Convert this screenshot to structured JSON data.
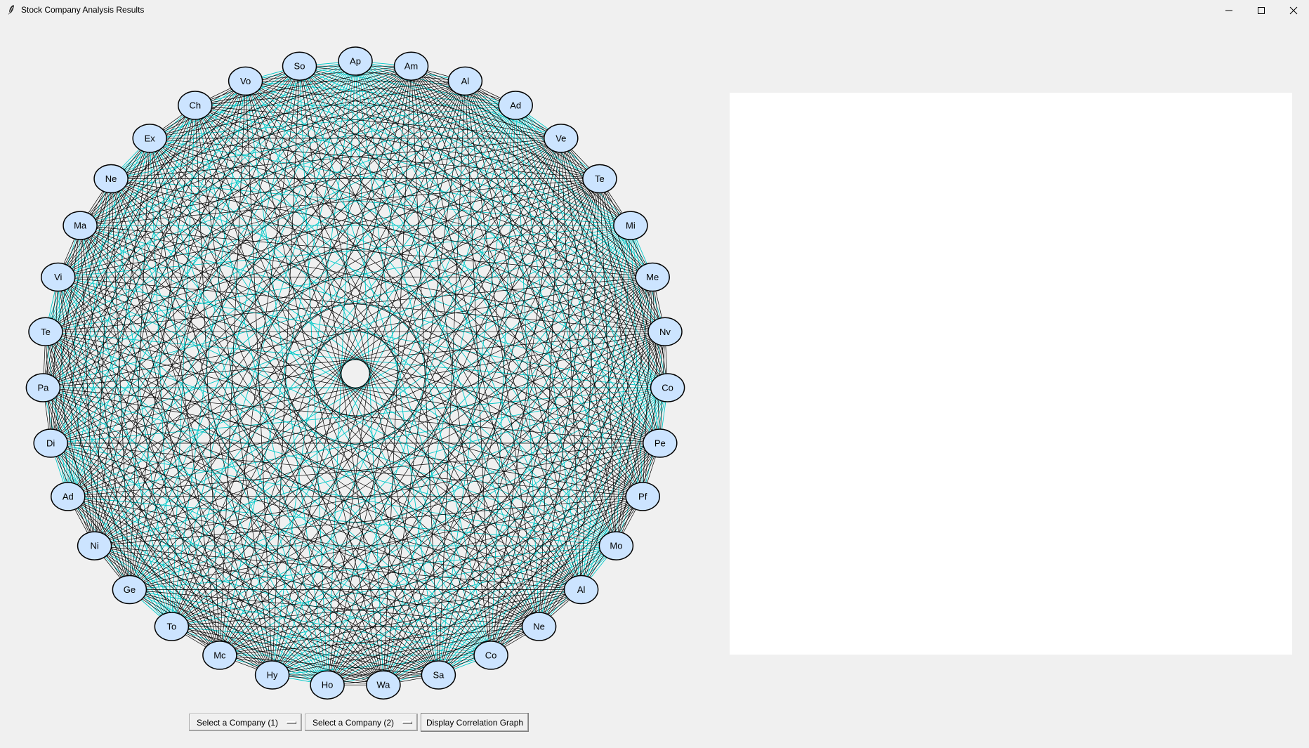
{
  "window": {
    "title": "Stock Company Analysis Results",
    "controls": [
      "minimize-icon",
      "maximize-icon",
      "close-icon"
    ]
  },
  "graph": {
    "type": "correlation-network",
    "edge_colors": {
      "primary": "#000000",
      "secondary": "#00c8c8"
    },
    "node_fill": "#cce4ff",
    "node_stroke": "#000000",
    "nodes": [
      "Ap",
      "Am",
      "Al",
      "Ad",
      "Ve",
      "Te",
      "Mi",
      "Me",
      "Nv",
      "Co",
      "Pe",
      "Pf",
      "Mo",
      "Al",
      "Ne",
      "Co",
      "Sa",
      "Wa",
      "Ho",
      "Hy",
      "Mc",
      "To",
      "Ge",
      "Ni",
      "Ad",
      "Di",
      "Pa",
      "Te",
      "Vi",
      "Ma",
      "Ne",
      "Ex",
      "Ch",
      "Vo",
      "So"
    ]
  },
  "controls": {
    "company1_label": "Select a Company (1)",
    "company2_label": "Select a Company (2)",
    "display_button_label": "Display Correlation Graph"
  }
}
